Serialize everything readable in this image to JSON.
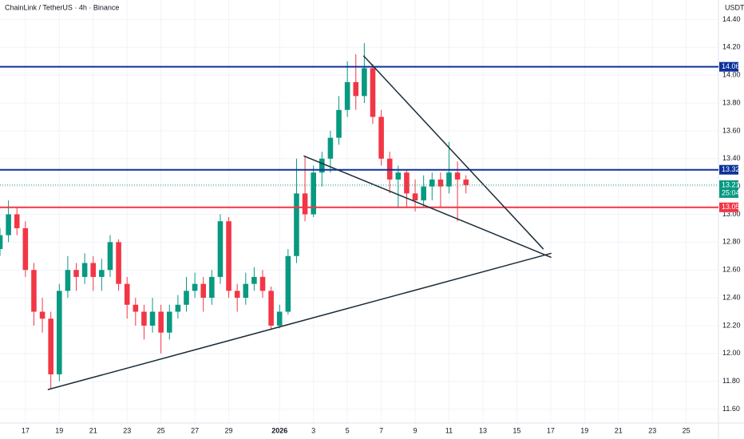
{
  "chart_data": {
    "type": "candlestick",
    "title": "ChainLink / TetherUS · 4h · Binance",
    "y_axis_label": "USDT",
    "xlim": [
      -1.5,
      40.9
    ],
    "ylim": [
      11.5,
      14.54
    ],
    "xticks": [
      {
        "value": 0,
        "label": "17"
      },
      {
        "value": 2,
        "label": "19"
      },
      {
        "value": 4,
        "label": "21"
      },
      {
        "value": 6,
        "label": "23"
      },
      {
        "value": 8,
        "label": "25"
      },
      {
        "value": 10,
        "label": "27"
      },
      {
        "value": 12,
        "label": "29"
      },
      {
        "value": 15,
        "label": "2026"
      },
      {
        "value": 17,
        "label": "3"
      },
      {
        "value": 19,
        "label": "5"
      },
      {
        "value": 21,
        "label": "7"
      },
      {
        "value": 23,
        "label": "9"
      },
      {
        "value": 25,
        "label": "11"
      },
      {
        "value": 27,
        "label": "13"
      },
      {
        "value": 29,
        "label": "15"
      },
      {
        "value": 31,
        "label": "17"
      },
      {
        "value": 33,
        "label": "19"
      },
      {
        "value": 35,
        "label": "21"
      },
      {
        "value": 37,
        "label": "23"
      },
      {
        "value": 39,
        "label": "25"
      }
    ],
    "yticks": [
      {
        "value": 11.6,
        "label": "11.60"
      },
      {
        "value": 11.8,
        "label": "11.80"
      },
      {
        "value": 12,
        "label": "12.00"
      },
      {
        "value": 12.2,
        "label": "12.20"
      },
      {
        "value": 12.4,
        "label": "12.40"
      },
      {
        "value": 12.6,
        "label": "12.60"
      },
      {
        "value": 12.8,
        "label": "12.80"
      },
      {
        "value": 13,
        "label": "13.00"
      },
      {
        "value": 13.2,
        "label": "13.20"
      },
      {
        "value": 13.4,
        "label": "13.40"
      },
      {
        "value": 13.6,
        "label": "13.60"
      },
      {
        "value": 13.8,
        "label": "13.80"
      },
      {
        "value": 14,
        "label": "14.00"
      },
      {
        "value": 14.2,
        "label": "14.20"
      },
      {
        "value": 14.4,
        "label": "14.40"
      }
    ],
    "grid": true,
    "up_color": "#089981",
    "down_color": "#f23645",
    "x": [
      -1.5,
      -1,
      -0.5,
      0,
      0.5,
      1,
      1.5,
      2,
      2.5,
      3,
      3.5,
      4,
      4.5,
      5,
      5.5,
      6,
      6.5,
      7,
      7.5,
      8,
      8.5,
      9,
      9.5,
      10,
      10.5,
      11,
      11.5,
      12,
      12.5,
      13,
      13.5,
      14,
      14.5,
      15,
      15.5,
      16,
      16.5,
      17,
      17.5,
      18,
      18.5,
      19,
      19.5,
      20,
      20.5,
      21,
      21.5,
      22,
      22.5,
      23,
      23.5,
      24,
      24.5,
      25,
      25.5,
      26
    ],
    "ohlc": [
      [
        12.75,
        12.9,
        12.7,
        12.85
      ],
      [
        12.85,
        13.1,
        12.8,
        13
      ],
      [
        13,
        13.05,
        12.85,
        12.9
      ],
      [
        12.9,
        12.95,
        12.55,
        12.6
      ],
      [
        12.6,
        12.65,
        12.2,
        12.3
      ],
      [
        12.3,
        12.4,
        12.15,
        12.25
      ],
      [
        12.25,
        12.3,
        11.75,
        11.85
      ],
      [
        11.85,
        12.5,
        11.8,
        12.45
      ],
      [
        12.45,
        12.7,
        12.4,
        12.6
      ],
      [
        12.6,
        12.65,
        12.45,
        12.55
      ],
      [
        12.55,
        12.72,
        12.5,
        12.65
      ],
      [
        12.65,
        12.7,
        12.45,
        12.55
      ],
      [
        12.55,
        12.68,
        12.45,
        12.6
      ],
      [
        12.6,
        12.85,
        12.55,
        12.8
      ],
      [
        12.8,
        12.82,
        12.45,
        12.5
      ],
      [
        12.5,
        12.55,
        12.25,
        12.35
      ],
      [
        12.35,
        12.4,
        12.2,
        12.3
      ],
      [
        12.3,
        12.35,
        12.1,
        12.2
      ],
      [
        12.2,
        12.4,
        12.15,
        12.3
      ],
      [
        12.3,
        12.35,
        12,
        12.15
      ],
      [
        12.15,
        12.35,
        12.1,
        12.3
      ],
      [
        12.3,
        12.42,
        12.25,
        12.35
      ],
      [
        12.35,
        12.55,
        12.3,
        12.45
      ],
      [
        12.45,
        12.58,
        12.4,
        12.5
      ],
      [
        12.5,
        12.55,
        12.3,
        12.4
      ],
      [
        12.4,
        12.6,
        12.35,
        12.55
      ],
      [
        12.55,
        13,
        12.5,
        12.95
      ],
      [
        12.95,
        12.98,
        12.4,
        12.45
      ],
      [
        12.45,
        12.5,
        12.3,
        12.4
      ],
      [
        12.4,
        12.58,
        12.35,
        12.5
      ],
      [
        12.5,
        12.62,
        12.45,
        12.55
      ],
      [
        12.55,
        12.6,
        12.4,
        12.45
      ],
      [
        12.45,
        12.48,
        12.17,
        12.2
      ],
      [
        12.2,
        12.35,
        12.18,
        12.3
      ],
      [
        12.3,
        12.75,
        12.28,
        12.7
      ],
      [
        12.7,
        13.4,
        12.65,
        13.15
      ],
      [
        13.15,
        13.42,
        12.95,
        13
      ],
      [
        13,
        13.35,
        12.98,
        13.3
      ],
      [
        13.3,
        13.45,
        13.2,
        13.4
      ],
      [
        13.4,
        13.6,
        13.3,
        13.55
      ],
      [
        13.55,
        13.85,
        13.5,
        13.75
      ],
      [
        13.75,
        14.1,
        13.7,
        13.95
      ],
      [
        13.95,
        14.15,
        13.75,
        13.85
      ],
      [
        13.85,
        14.23,
        13.8,
        14.05
      ],
      [
        14.05,
        14.08,
        13.65,
        13.7
      ],
      [
        13.7,
        13.75,
        13.35,
        13.4
      ],
      [
        13.4,
        13.45,
        13.15,
        13.25
      ],
      [
        13.25,
        13.35,
        13.05,
        13.3
      ],
      [
        13.3,
        13.32,
        13.05,
        13.15
      ],
      [
        13.15,
        13.25,
        13.02,
        13.1
      ],
      [
        13.1,
        13.28,
        13.05,
        13.2
      ],
      [
        13.2,
        13.3,
        13.1,
        13.25
      ],
      [
        13.25,
        13.3,
        13.05,
        13.2
      ],
      [
        13.2,
        13.52,
        13.15,
        13.3
      ],
      [
        13.3,
        13.38,
        12.95,
        13.25
      ],
      [
        13.25,
        13.28,
        13.15,
        13.21
      ]
    ],
    "levels": [
      {
        "value": 14.06,
        "color": "#0c3299"
      },
      {
        "value": 13.32,
        "color": "#0c3299"
      },
      {
        "value": 13.05,
        "color": "#f23645"
      }
    ],
    "trendlines": [
      {
        "x": [
          1.32,
          31.04
        ],
        "y": [
          11.74,
          12.72
        ]
      },
      {
        "x": [
          19.95,
          30.57
        ],
        "y": [
          14.14,
          12.75
        ]
      },
      {
        "x": [
          16.42,
          31.04
        ],
        "y": [
          13.42,
          12.69
        ]
      }
    ],
    "last_price": 13.21,
    "countdown": "25:04"
  }
}
